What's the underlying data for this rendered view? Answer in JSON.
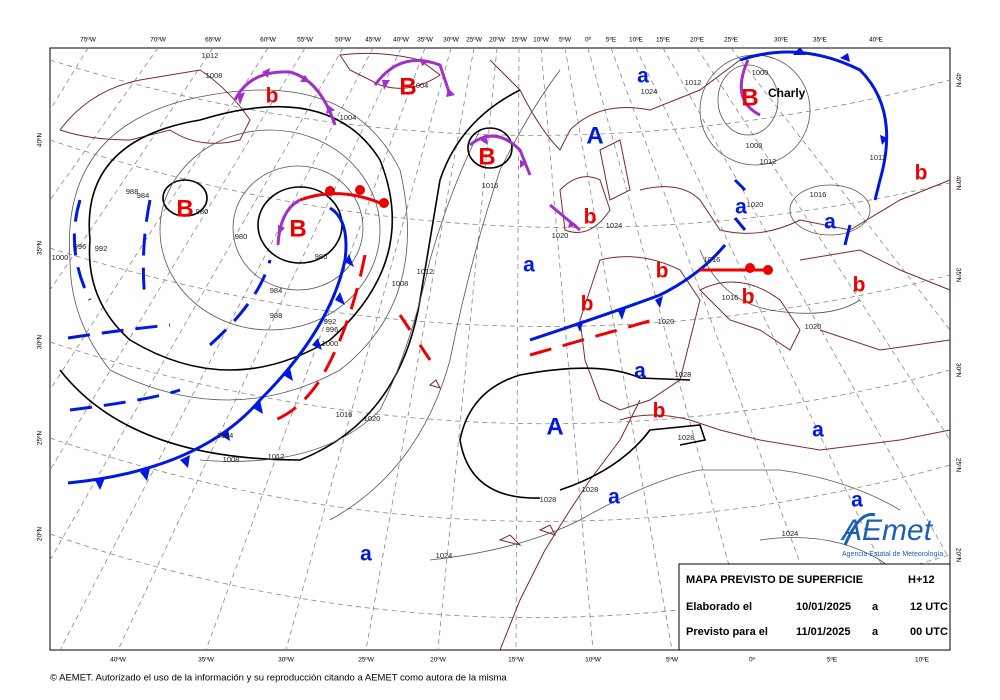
{
  "map": {
    "top_longitudes": [
      "75ºW",
      "70ºW",
      "65ºW",
      "60ºW",
      "55ºW",
      "50ºW",
      "45ºW",
      "40ºW",
      "35ºW",
      "30ºW",
      "25ºW",
      "20ºW",
      "15ºW",
      "10ºW",
      "5ºW",
      "0º",
      "5ºE",
      "10ºE",
      "15ºE",
      "20ºE",
      "25ºE",
      "30ºE",
      "35ºE",
      "40ºE"
    ],
    "bottom_longitudes": [
      "40ºW",
      "35ºW",
      "30ºW",
      "25ºW",
      "20ºW",
      "15ºW",
      "10ºW",
      "5ºW",
      "0º",
      "5ºE",
      "10ºE"
    ],
    "left_latitudes": [
      "40ºN",
      "35ºN",
      "30ºN",
      "25ºN",
      "20ºN"
    ],
    "right_latitudes": [
      "45ºN",
      "40ºN",
      "35ºN",
      "30ºN",
      "25ºN",
      "20ºN"
    ],
    "lows_major": [
      "B",
      "B",
      "B",
      "B",
      "B"
    ],
    "lows_minor": [
      "b",
      "b",
      "b",
      "b",
      "b",
      "b",
      "b",
      "b"
    ],
    "highs_major": [
      "A",
      "A"
    ],
    "highs_minor": [
      "a",
      "a",
      "a",
      "a",
      "a",
      "a",
      "a",
      "a",
      "a"
    ],
    "storm_name": "Charly",
    "isobar_labels": [
      "1012",
      "1008",
      "1004",
      "1004",
      "1016",
      "1012",
      "1008",
      "1020",
      "1024",
      "1016",
      "1016",
      "1020",
      "1028",
      "1028",
      "1028",
      "1028",
      "1024",
      "1024",
      "1012",
      "1016",
      "1020",
      "1004",
      "1008",
      "980",
      "980",
      "980",
      "984",
      "988",
      "992",
      "996",
      "1000",
      "996",
      "992",
      "988",
      "984",
      "1000",
      "1012",
      "1000",
      "1008",
      "1012",
      "1012",
      "1020",
      "1016",
      "1020",
      "1024"
    ]
  },
  "info_box": {
    "title": "MAPA PREVISTO DE SUPERFICIE",
    "lead_time": "H+12",
    "rows": [
      [
        "Elaborado el",
        "10/01/2025",
        "a",
        "12 UTC"
      ],
      [
        "Previsto para el",
        "11/01/2025",
        "a",
        "00 UTC"
      ]
    ]
  },
  "logo": {
    "mark": "AEmet",
    "subtitle": "Agencia Estatal de Meteorología"
  },
  "copyright": "© AEMET. Autorizado el uso de la información y su reproducción citando a AEMET como autora de la misma"
}
